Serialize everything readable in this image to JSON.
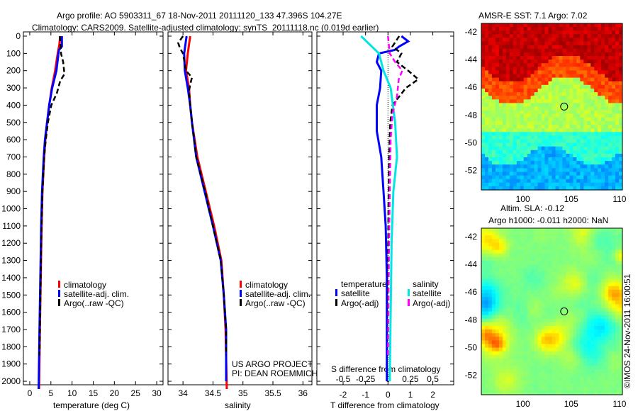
{
  "header": {
    "line1": "Argo profile: AO 5903311_67 18-Nov-2011 20111120_133 47.396S 104.27E",
    "line2": "Climatology: CARS2009. Satellite-adjusted climatology: synTS_20111118.nc (0.019d earlier)"
  },
  "colors": {
    "climatology": "#ff0000",
    "satellite": "#0000ff",
    "argo": "#000000",
    "sal_satellite": "#00e5e5",
    "sal_argo": "#ff00ff"
  },
  "chart_data": [
    {
      "type": "line",
      "xlabel": "temperature (deg C)",
      "xlim": [
        -1.5,
        31.5
      ],
      "ylim": [
        0,
        2045
      ],
      "xticks": [
        0,
        5,
        10,
        15,
        20,
        25,
        30
      ],
      "yticks": [
        0,
        100,
        200,
        300,
        400,
        500,
        600,
        700,
        800,
        900,
        1000,
        1100,
        1200,
        1300,
        1400,
        1500,
        1600,
        1700,
        1800,
        1900,
        2000
      ],
      "legend": [
        "climatology",
        "satellite-adj. clim.",
        "Argo(..raw -QC)"
      ],
      "series": [
        {
          "name": "climatology",
          "color": "#ff0000",
          "dash": false,
          "points": [
            [
              0,
              7.2
            ],
            [
              50,
              7.0
            ],
            [
              100,
              6.6
            ],
            [
              200,
              6.0
            ],
            [
              300,
              5.2
            ],
            [
              400,
              4.6
            ],
            [
              500,
              4.1
            ],
            [
              600,
              3.7
            ],
            [
              700,
              3.4
            ],
            [
              900,
              3.0
            ],
            [
              1100,
              2.8
            ],
            [
              1400,
              2.6
            ],
            [
              1700,
              2.4
            ],
            [
              2045,
              2.2
            ]
          ]
        },
        {
          "name": "satellite-adj. clim.",
          "color": "#0000ff",
          "dash": false,
          "points": [
            [
              0,
              7.6
            ],
            [
              60,
              7.6
            ],
            [
              80,
              6.9
            ],
            [
              200,
              6.3
            ],
            [
              300,
              5.3
            ],
            [
              400,
              4.6
            ],
            [
              500,
              4.1
            ],
            [
              600,
              3.6
            ],
            [
              700,
              3.3
            ],
            [
              900,
              2.9
            ],
            [
              1100,
              2.7
            ],
            [
              1400,
              2.5
            ],
            [
              1700,
              2.3
            ],
            [
              2045,
              2.1
            ]
          ]
        },
        {
          "name": "Argo(..raw -QC)",
          "color": "#000000",
          "dash": true,
          "points": [
            [
              0,
              7.1
            ],
            [
              60,
              7.3
            ],
            [
              100,
              7.4
            ],
            [
              150,
              7.9
            ],
            [
              220,
              8.2
            ],
            [
              260,
              7.2
            ],
            [
              330,
              6.4
            ],
            [
              400,
              5.1
            ],
            [
              500,
              4.3
            ],
            [
              600,
              3.8
            ],
            [
              700,
              3.4
            ],
            [
              900,
              3.0
            ],
            [
              1200,
              2.7
            ],
            [
              1700,
              2.4
            ],
            [
              1850,
              2.3
            ]
          ]
        }
      ]
    },
    {
      "type": "line",
      "xlabel": "salinity",
      "xlim": [
        33.75,
        36.15
      ],
      "ylim": [
        0,
        2045
      ],
      "xticks": [
        34,
        34.5,
        35,
        35.5,
        36
      ],
      "legend": [
        "climatology",
        "satellite-adj. clim.",
        "Argo(..raw -QC)"
      ],
      "annotation": [
        "US ARGO PROJECT",
        "PI: DEAN ROEMMICH"
      ],
      "series": [
        {
          "name": "climatology",
          "color": "#ff0000",
          "dash": false,
          "points": [
            [
              0,
              34.12
            ],
            [
              100,
              34.08
            ],
            [
              200,
              34.05
            ],
            [
              300,
              34.1
            ],
            [
              400,
              34.12
            ],
            [
              500,
              34.15
            ],
            [
              700,
              34.24
            ],
            [
              900,
              34.38
            ],
            [
              1100,
              34.52
            ],
            [
              1300,
              34.64
            ],
            [
              1500,
              34.68
            ],
            [
              1700,
              34.71
            ],
            [
              2045,
              34.73
            ]
          ]
        },
        {
          "name": "satellite-adj. clim.",
          "color": "#0000ff",
          "dash": false,
          "points": [
            [
              0,
              34.06
            ],
            [
              100,
              34.02
            ],
            [
              200,
              34.03
            ],
            [
              300,
              34.08
            ],
            [
              400,
              34.12
            ],
            [
              500,
              34.15
            ],
            [
              700,
              34.22
            ],
            [
              900,
              34.36
            ],
            [
              1100,
              34.5
            ],
            [
              1300,
              34.63
            ],
            [
              1500,
              34.68
            ],
            [
              1700,
              34.72
            ],
            [
              2000,
              34.72
            ]
          ]
        },
        {
          "name": "Argo(..raw -QC)",
          "color": "#000000",
          "dash": true,
          "points": [
            [
              0,
              34.0
            ],
            [
              40,
              33.92
            ],
            [
              70,
              33.95
            ],
            [
              100,
              34.0
            ],
            [
              200,
              34.05
            ],
            [
              240,
              34.15
            ],
            [
              280,
              34.12
            ],
            [
              320,
              34.1
            ],
            [
              400,
              34.12
            ],
            [
              500,
              34.15
            ],
            [
              700,
              34.22
            ],
            [
              900,
              34.37
            ],
            [
              1100,
              34.5
            ],
            [
              1300,
              34.63
            ],
            [
              1500,
              34.68
            ],
            [
              1700,
              34.72
            ],
            [
              1850,
              34.72
            ]
          ]
        }
      ]
    },
    {
      "type": "line",
      "xlabel": "T difference from climatology",
      "x2label": "S difference from climatology",
      "xlim": [
        -3.17,
        2.93
      ],
      "ylim": [
        0,
        2045
      ],
      "xticks": [
        -2,
        -1,
        0,
        1,
        2
      ],
      "x2ticks": [
        -0.5,
        -0.25,
        0,
        0.25,
        0.5
      ],
      "legend": {
        "temperature": "temperature",
        "salinity": "salinity",
        "t_sat": "satellite",
        "t_argo": "Argo(-adj)",
        "s_sat": "satellite",
        "s_argo": "Argo(-adj)"
      },
      "series": [
        {
          "name": "T satellite",
          "color": "#0000ff",
          "dash": false,
          "points": [
            [
              0,
              0.6
            ],
            [
              30,
              0.9
            ],
            [
              60,
              0.5
            ],
            [
              80,
              0.3
            ],
            [
              100,
              -0.4
            ],
            [
              150,
              -0.5
            ],
            [
              200,
              -0.3
            ],
            [
              300,
              -0.35
            ],
            [
              400,
              -0.5
            ],
            [
              550,
              -0.5
            ],
            [
              700,
              -0.3
            ],
            [
              900,
              -0.2
            ],
            [
              1100,
              -0.1
            ],
            [
              1400,
              -0.05
            ],
            [
              2000,
              -0.05
            ]
          ]
        },
        {
          "name": "T Argo(-adj)",
          "color": "#000000",
          "dash": true,
          "points": [
            [
              0,
              0.5
            ],
            [
              60,
              0.2
            ],
            [
              100,
              0.6
            ],
            [
              150,
              0.4
            ],
            [
              200,
              0.9
            ],
            [
              250,
              1.35
            ],
            [
              300,
              0.8
            ],
            [
              400,
              0.2
            ],
            [
              500,
              0.1
            ],
            [
              700,
              0.05
            ],
            [
              1000,
              0.02
            ],
            [
              1500,
              0.0
            ],
            [
              1850,
              0.0
            ]
          ]
        },
        {
          "name": "S satellite",
          "color": "#00e5e5",
          "dash": false,
          "points": [
            [
              0,
              -0.3
            ],
            [
              50,
              -0.2
            ],
            [
              100,
              -0.1
            ],
            [
              200,
              -0.05
            ],
            [
              300,
              0.03
            ],
            [
              500,
              0.08
            ],
            [
              700,
              0.1
            ],
            [
              900,
              0.06
            ],
            [
              1200,
              0.04
            ],
            [
              1600,
              0.03
            ],
            [
              2000,
              0.02
            ]
          ]
        },
        {
          "name": "S Argo(-adj)",
          "color": "#ff00ff",
          "dash": true,
          "points": [
            [
              0,
              0.0
            ],
            [
              100,
              0.02
            ],
            [
              150,
              0.08
            ],
            [
              200,
              0.16
            ],
            [
              250,
              0.12
            ],
            [
              350,
              0.1
            ],
            [
              450,
              0.05
            ],
            [
              600,
              0.03
            ],
            [
              900,
              0.02
            ],
            [
              1300,
              0.01
            ],
            [
              1850,
              0.0
            ]
          ]
        }
      ]
    },
    {
      "type": "heatmap",
      "title": "AMSR-E SST: 7.1 Argo: 7.02",
      "xlim": [
        95.7,
        110.3
      ],
      "ylim": [
        -53.4,
        -41.4
      ],
      "xticks": [
        100,
        105,
        110
      ],
      "yticks": [
        -42,
        -44,
        -46,
        -48,
        -50,
        -52
      ],
      "marker": [
        104.27,
        -47.396
      ]
    },
    {
      "type": "heatmap",
      "title": "Altim. SLA: -0.12",
      "subtitle": "Argo h1000: -0.011 h2000: NaN",
      "xlim": [
        95.7,
        110.3
      ],
      "ylim": [
        -53.4,
        -41.4
      ],
      "xticks": [
        100,
        105,
        110
      ],
      "yticks": [
        -42,
        -44,
        -46,
        -48,
        -50,
        -52
      ],
      "marker": [
        104.27,
        -47.396
      ]
    }
  ],
  "footer": {
    "stamp": "©IMOS 24-Nov-2011 16:00:51"
  }
}
